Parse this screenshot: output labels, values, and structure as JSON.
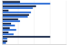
{
  "chart_data": {
    "type": "bar",
    "orientation": "horizontal",
    "tick_labels": false,
    "grid": true,
    "categories": [
      null,
      null,
      null,
      null,
      null,
      null,
      null,
      null,
      null,
      null
    ],
    "xlim": [
      0,
      100
    ],
    "xticks": [
      0,
      25,
      50,
      75,
      100
    ],
    "series": [
      {
        "color": "#1c2b4a",
        "values": [
          28,
          53,
          10,
          42,
          25,
          14,
          12,
          10,
          75,
          8
        ]
      },
      {
        "color": "#2f6fd6",
        "values": [
          75,
          48,
          45,
          40,
          28,
          20,
          22,
          18,
          8,
          6
        ]
      }
    ]
  }
}
